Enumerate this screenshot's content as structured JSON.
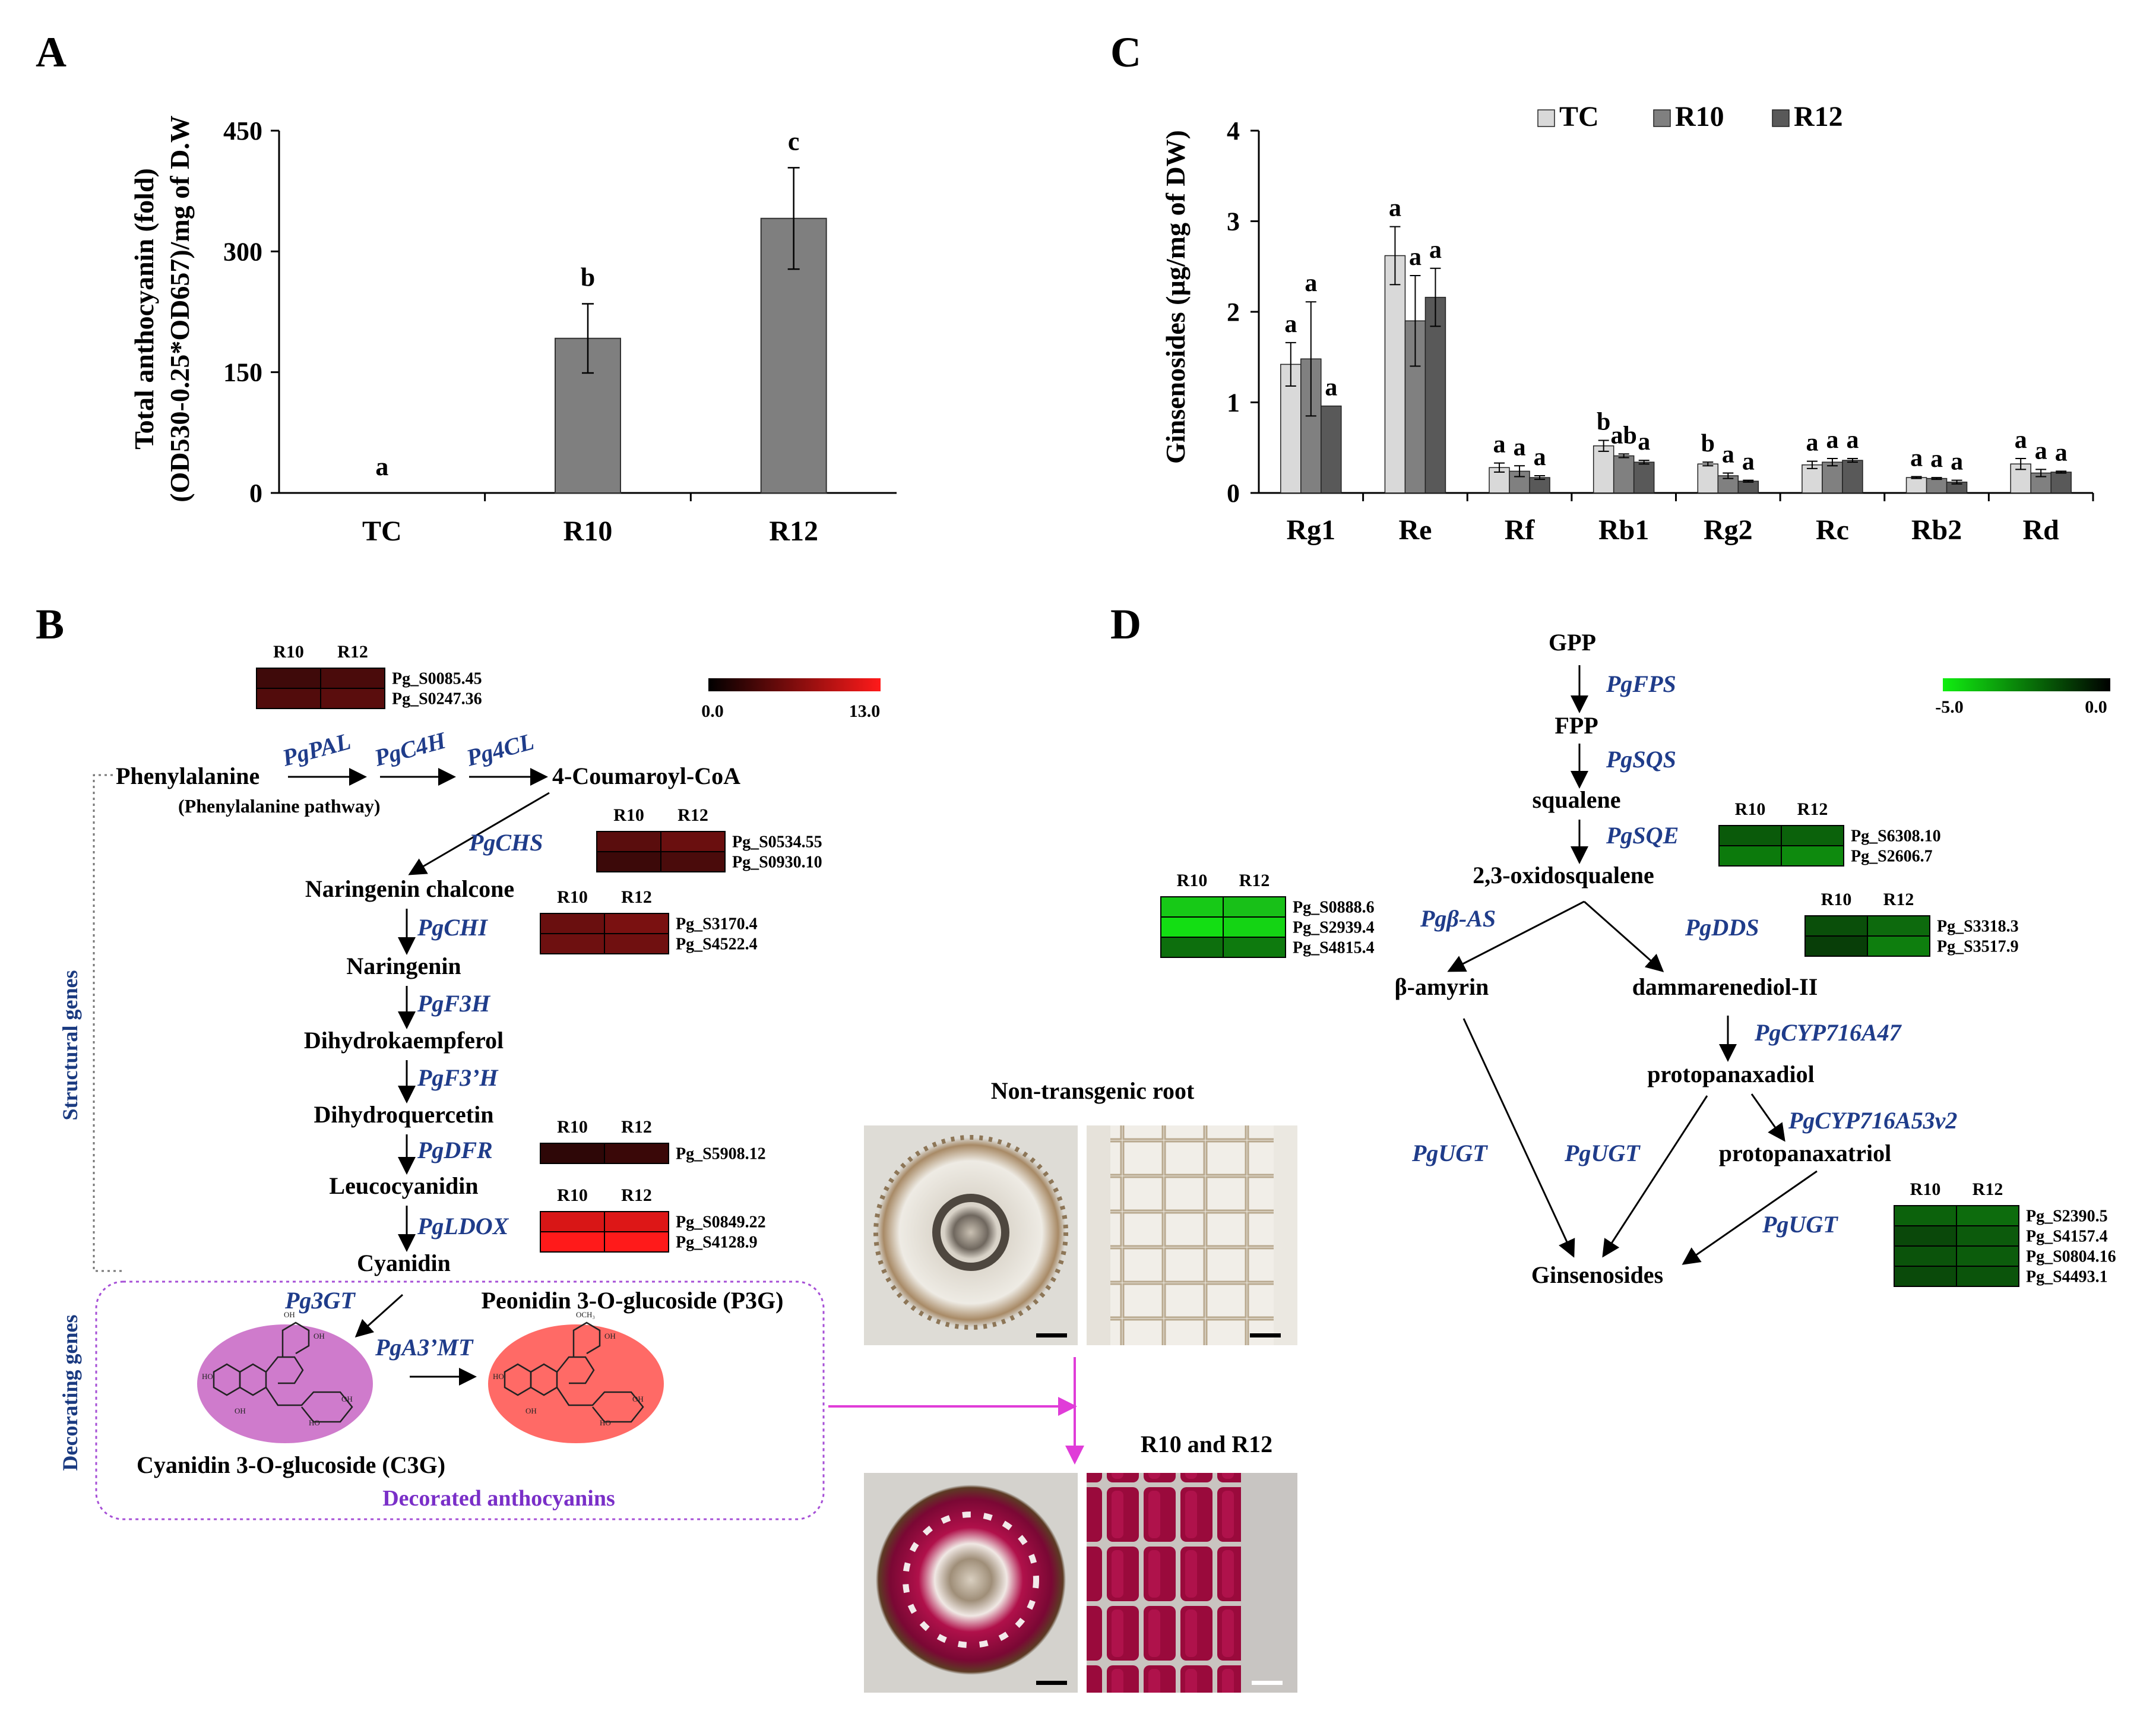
{
  "panels": {
    "A": {
      "letter": "A",
      "ylabel_line1": "Total anthocyanin  (fold)",
      "ylabel_line2": "(OD530-0.25*OD657)/mg of D.W",
      "chart_data": {
        "type": "bar",
        "categories": [
          "TC",
          "R10",
          "R12"
        ],
        "values": [
          0,
          192,
          341
        ],
        "errors": [
          0,
          43,
          63
        ],
        "letters": [
          "a",
          "b",
          "c"
        ],
        "ylim": [
          0,
          450
        ],
        "yticks": [
          "0",
          "150",
          "300",
          "450"
        ],
        "ytick_values": [
          0,
          150,
          300,
          450
        ],
        "bar_color": "#7f7f7f"
      }
    },
    "C": {
      "letter": "C",
      "ylabel": "Ginsenosides (µg/mg of DW)",
      "chart_data": {
        "type": "bar",
        "categories": [
          "Rg1",
          "Re",
          "Rf",
          "Rb1",
          "Rg2",
          "Rc",
          "Rb2",
          "Rd"
        ],
        "ylim": [
          0,
          4
        ],
        "yticks": [
          "0",
          "1",
          "2",
          "3",
          "4"
        ],
        "ytick_values": [
          0,
          1,
          2,
          3,
          4
        ],
        "series": [
          {
            "name": "TC",
            "color": "#d9d9d9",
            "values": [
              1.42,
              2.62,
              0.28,
              0.52,
              0.32,
              0.31,
              0.17,
              0.32
            ],
            "errors": [
              0.24,
              0.32,
              0.05,
              0.06,
              0.02,
              0.04,
              0.01,
              0.06
            ],
            "letters": [
              "a",
              "a",
              "a",
              "b",
              "b",
              "a",
              "a",
              "a"
            ]
          },
          {
            "name": "R10",
            "color": "#808080",
            "values": [
              1.48,
              1.9,
              0.24,
              0.41,
              0.19,
              0.34,
              0.16,
              0.22
            ],
            "errors": [
              0.63,
              0.5,
              0.06,
              0.02,
              0.03,
              0.04,
              0.01,
              0.04
            ],
            "letters": [
              "a",
              "a",
              "a",
              "ab",
              "a",
              "a",
              "a",
              "a"
            ]
          },
          {
            "name": "R12",
            "color": "#595959",
            "values": [
              0.96,
              2.16,
              0.17,
              0.34,
              0.13,
              0.36,
              0.12,
              0.23
            ],
            "errors": [
              0.0,
              0.32,
              0.02,
              0.02,
              0.01,
              0.02,
              0.02,
              0.01
            ],
            "letters": [
              "a",
              "a",
              "a",
              "a",
              "a",
              "a",
              "a",
              "a"
            ]
          }
        ]
      }
    },
    "B": {
      "letter": "B",
      "scale": {
        "min": "0.0",
        "max": "13.0",
        "colors": [
          "#000000",
          "#ff1a1a"
        ]
      },
      "nodes": {
        "phenylalanine": "Phenylalanine",
        "phe_pathway": "(Phenylalanine pathway)",
        "coumaroyl": "4-Coumaroyl-CoA",
        "naringenin_chalcone": "Naringenin chalcone",
        "naringenin": "Naringenin",
        "dihydrokaempferol": "Dihydrokaempferol",
        "dihydroquercetin": "Dihydroquercetin",
        "leucocyanidin": "Leucocyanidin",
        "cyanidin": "Cyanidin",
        "c3g": "Cyanidin 3-O-glucoside (C3G)",
        "p3g": "Peonidin 3-O-glucoside (P3G)",
        "decorated": "Decorated anthocyanins",
        "structural": "Structural genes",
        "decorating": "Decorating genes"
      },
      "enzymes": {
        "pal": "PgPAL",
        "c4h": "PgC4H",
        "4cl": "Pg4CL",
        "chs": "PgCHS",
        "chi": "PgCHI",
        "f3h": "PgF3H",
        "f3prime": "PgF3’H",
        "dfr": "PgDFR",
        "ldox": "PgLDOX",
        "gt": "Pg3GT",
        "mt": "PgA3’MT"
      },
      "heatmaps": {
        "pal": {
          "cols": [
            "R10",
            "R12"
          ],
          "rows": [
            {
              "id": "Pg_S0085.45",
              "colors": [
                "#3f0a0a",
                "#4a0b0b"
              ]
            },
            {
              "id": "Pg_S0247.36",
              "colors": [
                "#520c0c",
                "#5a0d0d"
              ]
            }
          ]
        },
        "chs": {
          "cols": [
            "R10",
            "R12"
          ],
          "rows": [
            {
              "id": "Pg_S0534.55",
              "colors": [
                "#5a0d0d",
                "#6a0f0f"
              ]
            },
            {
              "id": "Pg_S0930.10",
              "colors": [
                "#3c0909",
                "#4a0b0b"
              ]
            }
          ]
        },
        "chi": {
          "cols": [
            "R10",
            "R12"
          ],
          "rows": [
            {
              "id": "Pg_S3170.4",
              "colors": [
                "#6a0f0f",
                "#7a1111"
              ]
            },
            {
              "id": "Pg_S4522.4",
              "colors": [
                "#6e1010",
                "#701010"
              ]
            }
          ]
        },
        "dfr": {
          "cols": [
            "R10",
            "R12"
          ],
          "rows": [
            {
              "id": "Pg_S5908.12",
              "colors": [
                "#2e0707",
                "#3a0808"
              ]
            }
          ]
        },
        "ldox": {
          "cols": [
            "R10",
            "R12"
          ],
          "rows": [
            {
              "id": "Pg_S0849.22",
              "colors": [
                "#d81616",
                "#dd1717"
              ]
            },
            {
              "id": "Pg_S4128.9",
              "colors": [
                "#ff1a1a",
                "#ff1a1a"
              ]
            }
          ]
        }
      }
    },
    "D": {
      "letter": "D",
      "scale": {
        "min": "-5.0",
        "max": "0.0",
        "colors": [
          "#11ee11",
          "#000000"
        ]
      },
      "nodes": {
        "gpp": "GPP",
        "fpp": "FPP",
        "squalene": "squalene",
        "oxidosqualene": "2,3-oxidosqualene",
        "amyrin": "β-amyrin",
        "dammarenediol": "dammarenediol-II",
        "ppd": "protopanaxadiol",
        "ppt": "protopanaxatriol",
        "ginsenosides": "Ginsenosides"
      },
      "enzymes": {
        "fps": "PgFPS",
        "sqs": "PgSQS",
        "sqe": "PgSQE",
        "bas": "Pgβ-AS",
        "dds": "PgDDS",
        "cyp47": "PgCYP716A47",
        "cyp53": "PgCYP716A53v2",
        "ugt1": "PgUGT",
        "ugt2": "PgUGT",
        "ugt3": "PgUGT"
      },
      "heatmaps": {
        "sqe": {
          "cols": [
            "R10",
            "R12"
          ],
          "rows": [
            {
              "id": "Pg_S6308.10",
              "colors": [
                "#0a5a0a",
                "#0b620b"
              ]
            },
            {
              "id": "Pg_S2606.7",
              "colors": [
                "#0c7a0c",
                "#0e8a0e"
              ]
            }
          ]
        },
        "bas": {
          "cols": [
            "R10",
            "R12"
          ],
          "rows": [
            {
              "id": "Pg_S0888.6",
              "colors": [
                "#17c917",
                "#18c018"
              ]
            },
            {
              "id": "Pg_S2939.4",
              "colors": [
                "#13de13",
                "#14d414"
              ]
            },
            {
              "id": "Pg_S4815.4",
              "colors": [
                "#0d6f0d",
                "#0e7a0e"
              ]
            }
          ]
        },
        "dds": {
          "cols": [
            "R10",
            "R12"
          ],
          "rows": [
            {
              "id": "Pg_S3318.3",
              "colors": [
                "#0a4f0a",
                "#0d6a0d"
              ]
            },
            {
              "id": "Pg_S3517.9",
              "colors": [
                "#083e08",
                "#0e7e0e"
              ]
            }
          ]
        },
        "ugt": {
          "cols": [
            "R10",
            "R12"
          ],
          "rows": [
            {
              "id": "Pg_S2390.5",
              "colors": [
                "#0c620c",
                "#0d6c0d"
              ]
            },
            {
              "id": "Pg_S4157.4",
              "colors": [
                "#0a480a",
                "#0c5a0c"
              ]
            },
            {
              "id": "Pg_S0804.16",
              "colors": [
                "#0b530b",
                "#0c5c0c"
              ]
            },
            {
              "id": "Pg_S4493.1",
              "colors": [
                "#0a4a0a",
                "#0b540b"
              ]
            }
          ]
        }
      }
    }
  },
  "photos": {
    "top_title": "Non-transgenic root",
    "bottom_title": "R10 and R12"
  }
}
